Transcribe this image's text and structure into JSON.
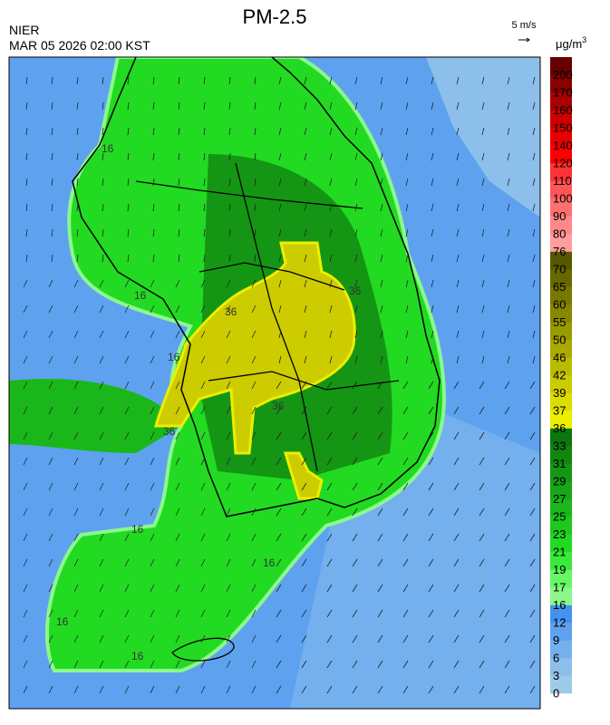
{
  "header": {
    "title": "PM-2.5",
    "agency": "NIER",
    "datetime": "MAR 05 2026 02:00 KST",
    "wind_scale": "5 m/s",
    "unit": {
      "base": "μg/m",
      "sup": "3"
    }
  },
  "colorbar": {
    "ticks": [
      0,
      3,
      6,
      9,
      12,
      16,
      17,
      19,
      21,
      23,
      25,
      27,
      29,
      31,
      33,
      36,
      37,
      39,
      42,
      46,
      50,
      55,
      60,
      65,
      70,
      76,
      80,
      90,
      100,
      110,
      120,
      140,
      150,
      160,
      170,
      200
    ],
    "colors": [
      "#9ccbe8",
      "#8cc0ea",
      "#74b0ee",
      "#5ea2ef",
      "#4292ef",
      "#8cf88c",
      "#66f766",
      "#3aea3a",
      "#22da22",
      "#1ec81e",
      "#1ab71a",
      "#17a617",
      "#149614",
      "#118611",
      "#0e760e",
      "#eeee00",
      "#dcdc00",
      "#cccc00",
      "#bbbb00",
      "#aaaa00",
      "#999900",
      "#888800",
      "#787800",
      "#686800",
      "#585800",
      "#ff9d9d",
      "#ff8888",
      "#ff7070",
      "#ff5555",
      "#ff3333",
      "#ff0000",
      "#e80000",
      "#cc0000",
      "#aa0000",
      "#880000",
      "#660000"
    ]
  },
  "contour_labels": [
    "16",
    "16",
    "16",
    "16",
    "16",
    "16",
    "16",
    "36",
    "36",
    "36",
    "36"
  ]
}
